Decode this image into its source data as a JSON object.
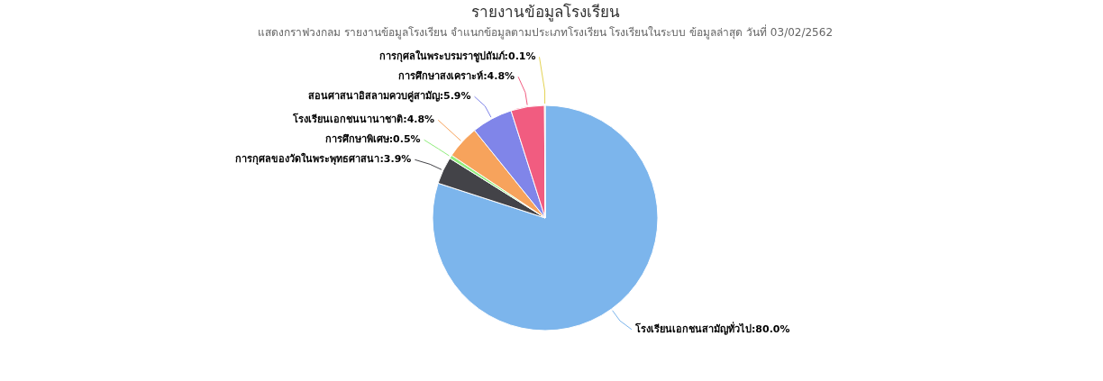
{
  "chart_data": {
    "type": "pie",
    "title": "รายงานข้อมูลโรงเรียน",
    "subtitle": "แสดงกราฟวงกลม รายงานข้อมูลโรงเรียน จำแนกข้อมูลตามประเภทโรงเรียน โรงเรียนในระบบ ข้อมูลล่าสุด วันที่ 03/02/2562",
    "categories": [
      "โรงเรียนเอกชนสามัญทั่วไป",
      "การกุศลของวัดในพระพุทธศาสนา",
      "การศึกษาพิเศษ",
      "โรงเรียนเอกชนนานาชาติ",
      "สอนศาสนาอิสลามควบคู่สามัญ",
      "การศึกษาสงเคราะห์",
      "การกุศลในพระบรมราชูปถัมภ์"
    ],
    "values": [
      80.0,
      3.9,
      0.5,
      4.8,
      5.9,
      4.8,
      0.1
    ],
    "value_labels": [
      "80.0%",
      "3.9%",
      "0.5%",
      "4.8%",
      "5.9%",
      "4.8%",
      "0.1%"
    ],
    "colors": [
      "#7cb5ec",
      "#434348",
      "#90ed7d",
      "#f7a35c",
      "#8085e9",
      "#f15c80",
      "#e4d354"
    ],
    "legend": false
  }
}
